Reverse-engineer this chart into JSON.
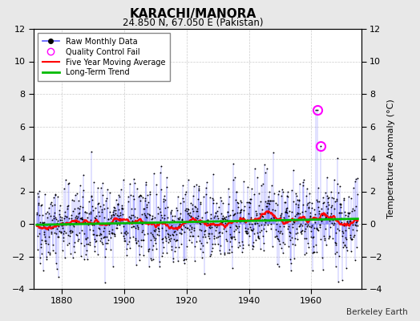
{
  "title": "KARACHI/MANORA",
  "subtitle": "24.850 N, 67.050 E (Pakistan)",
  "ylabel": "Temperature Anomaly (°C)",
  "credit": "Berkeley Earth",
  "xlim": [
    1871,
    1976
  ],
  "ylim": [
    -4,
    12
  ],
  "yticks": [
    -4,
    -2,
    0,
    2,
    4,
    6,
    8,
    10,
    12
  ],
  "xticks": [
    1880,
    1900,
    1920,
    1940,
    1960
  ],
  "start_year": 1872,
  "seed": 42,
  "n_months": 1236,
  "qc_fail_index_1": 1080,
  "qc_fail_value_1": 7.0,
  "qc_fail_index_2": 1092,
  "qc_fail_value_2": 4.8,
  "bg_color": "#e8e8e8",
  "plot_bg": "#ffffff",
  "line_color": "#5555ff",
  "dot_color": "#000000",
  "ma_color": "#ff0000",
  "trend_color": "#00bb00",
  "qc_color": "#ff00ff",
  "legend_entries": [
    "Raw Monthly Data",
    "Quality Control Fail",
    "Five Year Moving Average",
    "Long-Term Trend"
  ]
}
